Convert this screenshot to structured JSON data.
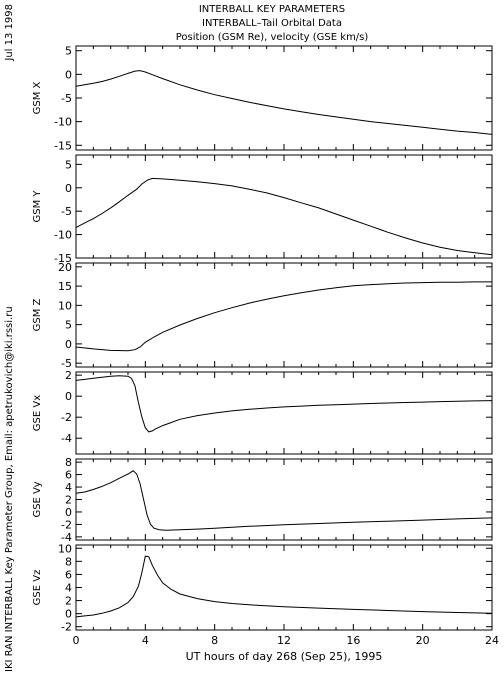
{
  "header": {
    "title1": "INTERBALL KEY PARAMETERS",
    "title2": "INTERBALL–Tail Orbital Data",
    "title3": "Position (GSM Re), velocity (GSE km/s)"
  },
  "side": {
    "date": "Jul 13 1998",
    "credit": "IKI RAN INTERBALL Key Parameter Group, Email: apetrukovich@iki.rssi.ru"
  },
  "chart_data": {
    "type": "line",
    "xlabel": "UT hours of day 268 (Sep 25), 1995",
    "xlim": [
      0,
      24
    ],
    "xticks": [
      0,
      4,
      8,
      12,
      16,
      20,
      24
    ],
    "xtick_labels": [
      "0",
      "4",
      "8",
      "12",
      "16",
      "20",
      "24"
    ],
    "panels": [
      {
        "ylabel": "GSM X",
        "ylim": [
          -16,
          6
        ],
        "yticks": [
          5,
          0,
          -5,
          -10,
          -15
        ],
        "ytick_labels": [
          "5",
          "0",
          "-5",
          "-10",
          "-15"
        ],
        "x": [
          0,
          0.5,
          1,
          1.5,
          2,
          2.5,
          3,
          3.4,
          3.7,
          4.0,
          4.5,
          5,
          6,
          7,
          8,
          9,
          10,
          11,
          12,
          13,
          14,
          15,
          16,
          17,
          18,
          19,
          20,
          21,
          22,
          23,
          24
        ],
        "values": [
          -2.5,
          -2.2,
          -1.9,
          -1.5,
          -1.0,
          -0.4,
          0.2,
          0.7,
          0.8,
          0.5,
          -0.2,
          -0.9,
          -2.2,
          -3.3,
          -4.3,
          -5.1,
          -5.9,
          -6.6,
          -7.3,
          -7.9,
          -8.5,
          -9.0,
          -9.5,
          -10.0,
          -10.4,
          -10.8,
          -11.2,
          -11.6,
          -12.0,
          -12.3,
          -12.7
        ]
      },
      {
        "ylabel": "GSM Y",
        "ylim": [
          -15,
          7
        ],
        "yticks": [
          5,
          0,
          -5,
          -10,
          -15
        ],
        "ytick_labels": [
          "5",
          "0",
          "-5",
          "-10",
          "-15"
        ],
        "x": [
          0,
          0.5,
          1,
          1.5,
          2,
          2.5,
          3,
          3.5,
          3.8,
          4.1,
          4.4,
          5,
          6,
          7,
          8,
          9,
          10,
          11,
          12,
          13,
          14,
          15,
          16,
          17,
          18,
          19,
          20,
          21,
          22,
          23,
          24
        ],
        "values": [
          -8.5,
          -7.5,
          -6.6,
          -5.5,
          -4.3,
          -3.0,
          -1.6,
          -0.3,
          0.8,
          1.6,
          2.0,
          1.9,
          1.6,
          1.3,
          0.9,
          0.4,
          -0.3,
          -1.1,
          -2.1,
          -3.2,
          -4.3,
          -5.6,
          -6.9,
          -8.2,
          -9.5,
          -10.7,
          -11.8,
          -12.7,
          -13.4,
          -13.9,
          -14.3
        ]
      },
      {
        "ylabel": "GSM Z",
        "ylim": [
          -6,
          21
        ],
        "yticks": [
          20,
          15,
          10,
          5,
          0,
          -5
        ],
        "ytick_labels": [
          "20",
          "15",
          "10",
          "5",
          "0",
          "-5"
        ],
        "x": [
          0,
          1,
          2,
          3,
          3.4,
          3.7,
          4.0,
          4.5,
          5,
          6,
          7,
          8,
          9,
          10,
          11,
          12,
          13,
          14,
          15,
          16,
          17,
          18,
          19,
          20,
          21,
          22,
          23,
          24
        ],
        "values": [
          -0.8,
          -1.3,
          -1.7,
          -1.8,
          -1.5,
          -0.8,
          0.4,
          1.8,
          3.0,
          4.9,
          6.6,
          8.1,
          9.4,
          10.6,
          11.6,
          12.5,
          13.3,
          14.0,
          14.6,
          15.1,
          15.4,
          15.6,
          15.8,
          15.9,
          16.0,
          16.0,
          16.1,
          16.1
        ]
      },
      {
        "ylabel": "GSE Vx",
        "ylim": [
          -5.5,
          2.3
        ],
        "yticks": [
          2,
          0,
          -2,
          -4
        ],
        "ytick_labels": [
          "2",
          "0",
          "-2",
          "-4"
        ],
        "x": [
          0,
          0.5,
          1,
          1.5,
          2,
          2.5,
          3,
          3.2,
          3.4,
          3.6,
          3.8,
          4.0,
          4.2,
          4.4,
          4.6,
          5,
          5.5,
          6,
          7,
          8,
          9,
          10,
          11,
          12,
          13,
          14,
          15,
          16,
          17,
          18,
          19,
          20,
          21,
          22,
          23,
          24
        ],
        "values": [
          1.5,
          1.6,
          1.7,
          1.8,
          1.9,
          1.95,
          1.9,
          1.7,
          1.0,
          -0.6,
          -2.0,
          -3.0,
          -3.4,
          -3.3,
          -3.1,
          -2.8,
          -2.5,
          -2.2,
          -1.85,
          -1.6,
          -1.4,
          -1.25,
          -1.12,
          -1.02,
          -0.94,
          -0.87,
          -0.81,
          -0.75,
          -0.7,
          -0.65,
          -0.6,
          -0.56,
          -0.52,
          -0.48,
          -0.45,
          -0.42
        ]
      },
      {
        "ylabel": "GSE Vy",
        "ylim": [
          -4.5,
          8.5
        ],
        "yticks": [
          8,
          6,
          4,
          2,
          0,
          -2,
          -4
        ],
        "ytick_labels": [
          "8",
          "6",
          "4",
          "2",
          "0",
          "-2",
          "-4"
        ],
        "x": [
          0,
          0.5,
          1,
          1.5,
          2,
          2.5,
          3,
          3.3,
          3.5,
          3.7,
          3.9,
          4.1,
          4.3,
          4.5,
          4.8,
          5.2,
          6,
          7,
          8,
          10,
          12,
          14,
          16,
          18,
          20,
          22,
          24
        ],
        "values": [
          3.0,
          3.2,
          3.6,
          4.1,
          4.7,
          5.4,
          6.1,
          6.6,
          6.1,
          4.5,
          2.0,
          -0.5,
          -2.0,
          -2.6,
          -2.85,
          -2.95,
          -2.85,
          -2.75,
          -2.6,
          -2.3,
          -2.05,
          -1.85,
          -1.65,
          -1.48,
          -1.3,
          -1.12,
          -0.95
        ]
      },
      {
        "ylabel": "GSE Vz",
        "ylim": [
          -2.5,
          10.5
        ],
        "yticks": [
          10,
          8,
          6,
          4,
          2,
          0,
          -2
        ],
        "ytick_labels": [
          "10",
          "8",
          "6",
          "4",
          "2",
          "0",
          "-2"
        ],
        "x": [
          0,
          0.5,
          1,
          1.5,
          2,
          2.5,
          3,
          3.3,
          3.6,
          3.8,
          4.0,
          4.2,
          4.4,
          4.7,
          5,
          5.5,
          6,
          7,
          8,
          9,
          10,
          12,
          14,
          16,
          18,
          20,
          22,
          24
        ],
        "values": [
          -0.5,
          -0.35,
          -0.2,
          0.05,
          0.4,
          0.9,
          1.7,
          2.6,
          4.2,
          6.3,
          8.8,
          8.7,
          7.4,
          5.9,
          4.7,
          3.7,
          3.0,
          2.3,
          1.85,
          1.55,
          1.35,
          1.05,
          0.85,
          0.65,
          0.48,
          0.32,
          0.18,
          0.05
        ]
      }
    ]
  }
}
